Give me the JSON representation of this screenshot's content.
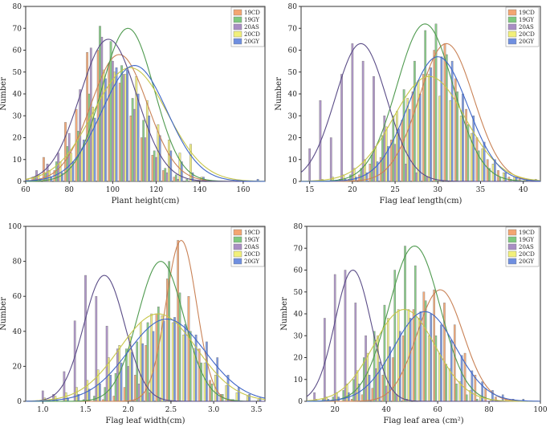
{
  "colors": {
    "19CD": "#f4a571",
    "19GY": "#7fc97f",
    "20AS": "#a98ec4",
    "20CD": "#f2f07a",
    "20GY": "#6f8fe0",
    "curve_19CD": "#c98256",
    "curve_19GY": "#4f9a4f",
    "curve_20AS": "#5a4c87",
    "curve_20CD": "#c7c64a",
    "curve_20GY": "#3e66c8"
  },
  "chart_data": [
    {
      "type": "bar",
      "title": "",
      "xlabel": "Plant height(cm)",
      "ylabel": "Number",
      "xlim": [
        60,
        170
      ],
      "ylim": [
        0,
        80
      ],
      "xticks": [
        "60",
        "80",
        "100",
        "120",
        "140",
        "160"
      ],
      "xtick_values": [
        60,
        80,
        100,
        120,
        140,
        160
      ],
      "yticks": [
        "0",
        "10",
        "20",
        "30",
        "40",
        "50",
        "60",
        "70",
        "80"
      ],
      "ytick_values": [
        0,
        10,
        20,
        30,
        40,
        50,
        60,
        70,
        80
      ],
      "bin_start": 60,
      "bin_width": 5,
      "legend": [
        "19CD",
        "19GY",
        "20AS",
        "20CD",
        "20GY"
      ],
      "series": [
        {
          "name": "19CD",
          "values": [
            1,
            2,
            11,
            5,
            27,
            33,
            59,
            60,
            54,
            45,
            30,
            20,
            12,
            5,
            2,
            0,
            0,
            0,
            0,
            0,
            0,
            0
          ],
          "mean": 103,
          "sd": 13,
          "peak": 58
        },
        {
          "name": "19GY",
          "values": [
            1,
            2,
            4,
            9,
            16,
            23,
            40,
            71,
            64,
            53,
            38,
            28,
            14,
            6,
            3,
            1,
            0,
            0,
            0,
            0,
            0,
            0
          ],
          "mean": 107,
          "sd": 12,
          "peak": 70
        },
        {
          "name": "20AS",
          "values": [
            2,
            5,
            8,
            13,
            22,
            42,
            61,
            66,
            55,
            49,
            33,
            20,
            11,
            4,
            1,
            0,
            0,
            0,
            0,
            0,
            0,
            0
          ],
          "mean": 98,
          "sd": 13,
          "peak": 65
        },
        {
          "name": "20CD",
          "values": [
            1,
            3,
            5,
            9,
            13,
            15,
            34,
            51,
            50,
            49,
            48,
            37,
            26,
            19,
            13,
            17,
            2,
            0,
            0,
            0,
            0,
            0
          ],
          "mean": 108,
          "sd": 17,
          "peak": 52
        },
        {
          "name": "20GY",
          "values": [
            0,
            1,
            2,
            4,
            9,
            19,
            29,
            47,
            52,
            51,
            40,
            30,
            21,
            14,
            9,
            4,
            2,
            0,
            0,
            0,
            0,
            1
          ],
          "mean": 110,
          "sd": 15,
          "peak": 53
        }
      ]
    },
    {
      "type": "bar",
      "title": "",
      "xlabel": "Flag leaf length(cm)",
      "ylabel": "Number",
      "xlim": [
        14,
        42
      ],
      "ylim": [
        0,
        80
      ],
      "xticks": [
        "15",
        "20",
        "25",
        "30",
        "35",
        "40"
      ],
      "xtick_values": [
        15,
        20,
        25,
        30,
        35,
        40
      ],
      "yticks": [
        "0",
        "10",
        "20",
        "30",
        "40",
        "50",
        "60",
        "70",
        "80"
      ],
      "ytick_values": [
        0,
        10,
        20,
        30,
        40,
        50,
        60,
        70,
        80
      ],
      "bin_start": 15,
      "bin_width": 1.25,
      "legend": [
        "19CD",
        "19GY",
        "20AS",
        "20CD",
        "20GY"
      ],
      "series": [
        {
          "name": "19CD",
          "values": [
            0,
            0,
            0,
            0,
            1,
            3,
            8,
            11,
            19,
            28,
            41,
            49,
            60,
            63,
            47,
            33,
            20,
            10,
            5,
            2,
            1,
            0
          ],
          "mean": 31,
          "sd": 3.2,
          "peak": 63
        },
        {
          "name": "19GY",
          "values": [
            0,
            0,
            0,
            1,
            3,
            6,
            12,
            21,
            30,
            42,
            55,
            69,
            72,
            58,
            41,
            26,
            14,
            6,
            2,
            1,
            0,
            0
          ],
          "mean": 28.5,
          "sd": 3.3,
          "peak": 72
        },
        {
          "name": "20AS",
          "values": [
            15,
            37,
            20,
            49,
            63,
            55,
            48,
            30,
            17,
            8,
            4,
            2,
            0,
            0,
            0,
            0,
            0,
            0,
            0,
            0,
            0,
            0
          ],
          "mean": 21,
          "sd": 3,
          "peak": 63
        },
        {
          "name": "20CD",
          "values": [
            0,
            1,
            2,
            3,
            6,
            10,
            16,
            25,
            32,
            38,
            46,
            49,
            39,
            37,
            30,
            22,
            15,
            8,
            4,
            2,
            1,
            1
          ],
          "mean": 29,
          "sd": 4.2,
          "peak": 48
        },
        {
          "name": "20GY",
          "values": [
            0,
            0,
            0,
            1,
            2,
            4,
            9,
            16,
            24,
            33,
            40,
            52,
            57,
            55,
            40,
            30,
            18,
            10,
            4,
            2,
            1,
            0
          ],
          "mean": 30,
          "sd": 3.5,
          "peak": 57
        }
      ]
    },
    {
      "type": "bar",
      "title": "",
      "xlabel": "Flag leaf width(cm)",
      "ylabel": "Number",
      "xlim": [
        0.8,
        3.6
      ],
      "ylim": [
        0,
        100
      ],
      "xticks": [
        "1.0",
        "1.5",
        "2.0",
        "2.5",
        "3.0",
        "3.5"
      ],
      "xtick_values": [
        1.0,
        1.5,
        2.0,
        2.5,
        3.0,
        3.5
      ],
      "yticks": [
        "0",
        "20",
        "40",
        "60",
        "80",
        "100"
      ],
      "ytick_values": [
        0,
        20,
        40,
        60,
        80,
        100
      ],
      "bin_start": 1.0,
      "bin_width": 0.125,
      "legend": [
        "19CD",
        "19GY",
        "20AS",
        "20CD",
        "20GY"
      ],
      "series": [
        {
          "name": "19CD",
          "values": [
            0,
            0,
            0,
            0,
            0,
            0,
            1,
            3,
            8,
            15,
            32,
            50,
            70,
            92,
            60,
            30,
            12,
            4,
            1,
            0,
            0,
            0
          ],
          "mean": 2.62,
          "sd": 0.18,
          "peak": 92
        },
        {
          "name": "19GY",
          "values": [
            0,
            0,
            0,
            0,
            1,
            3,
            8,
            16,
            30,
            34,
            45,
            54,
            80,
            62,
            40,
            22,
            10,
            4,
            1,
            0,
            0,
            0
          ],
          "mean": 2.38,
          "sd": 0.27,
          "peak": 80
        },
        {
          "name": "20AS",
          "values": [
            6,
            4,
            17,
            46,
            72,
            60,
            43,
            30,
            20,
            10,
            5,
            2,
            0,
            0,
            0,
            0,
            0,
            0,
            0,
            0,
            0,
            0
          ],
          "mean": 1.72,
          "sd": 0.24,
          "peak": 72
        },
        {
          "name": "20CD",
          "values": [
            2,
            3,
            5,
            8,
            12,
            18,
            25,
            32,
            37,
            45,
            50,
            49,
            45,
            38,
            30,
            22,
            15,
            9,
            5,
            3,
            1,
            0
          ],
          "mean": 2.35,
          "sd": 0.45,
          "peak": 50
        },
        {
          "name": "20GY",
          "values": [
            0,
            1,
            2,
            4,
            7,
            10,
            15,
            22,
            28,
            33,
            40,
            46,
            48,
            44,
            38,
            34,
            25,
            15,
            8,
            4,
            2,
            1
          ],
          "mean": 2.45,
          "sd": 0.45,
          "peak": 47
        }
      ]
    },
    {
      "type": "bar",
      "title": "",
      "xlabel": "Flag leaf area (cm²)",
      "ylabel": "Number",
      "xlim": [
        9,
        100
      ],
      "ylim": [
        0,
        80
      ],
      "xticks": [
        "20",
        "40",
        "60",
        "80",
        "100"
      ],
      "xtick_values": [
        20,
        40,
        60,
        80,
        100
      ],
      "yticks": [
        "0",
        "10",
        "20",
        "30",
        "40",
        "50",
        "60",
        "70",
        "80"
      ],
      "ytick_values": [
        0,
        10,
        20,
        30,
        40,
        50,
        60,
        70,
        80
      ],
      "bin_start": 12,
      "bin_width": 4,
      "legend": [
        "19CD",
        "19GY",
        "20AS",
        "20CD",
        "20GY"
      ],
      "series": [
        {
          "name": "19CD",
          "values": [
            0,
            0,
            0,
            0,
            1,
            3,
            6,
            12,
            20,
            30,
            42,
            50,
            51,
            45,
            35,
            22,
            12,
            6,
            2,
            1,
            0,
            0
          ],
          "mean": 61,
          "sd": 9,
          "peak": 51
        },
        {
          "name": "19GY",
          "values": [
            0,
            1,
            2,
            5,
            10,
            20,
            32,
            44,
            60,
            71,
            62,
            46,
            30,
            17,
            8,
            3,
            1,
            0,
            0,
            0,
            0,
            0
          ],
          "mean": 51,
          "sd": 10,
          "peak": 71
        },
        {
          "name": "20AS",
          "values": [
            4,
            38,
            58,
            60,
            45,
            30,
            15,
            7,
            3,
            1,
            0,
            0,
            0,
            0,
            0,
            0,
            0,
            0,
            0,
            0,
            0,
            0
          ],
          "mean": 27,
          "sd": 7,
          "peak": 60
        },
        {
          "name": "20CD",
          "values": [
            1,
            2,
            4,
            8,
            14,
            22,
            30,
            38,
            42,
            42,
            38,
            30,
            22,
            15,
            9,
            5,
            2,
            1,
            0,
            0,
            0,
            0
          ],
          "mean": 47,
          "sd": 12,
          "peak": 42
        },
        {
          "name": "20GY",
          "values": [
            0,
            1,
            2,
            4,
            8,
            12,
            18,
            25,
            32,
            38,
            41,
            40,
            35,
            28,
            21,
            14,
            9,
            5,
            3,
            1,
            1,
            0
          ],
          "mean": 55,
          "sd": 12,
          "peak": 41
        }
      ]
    }
  ]
}
